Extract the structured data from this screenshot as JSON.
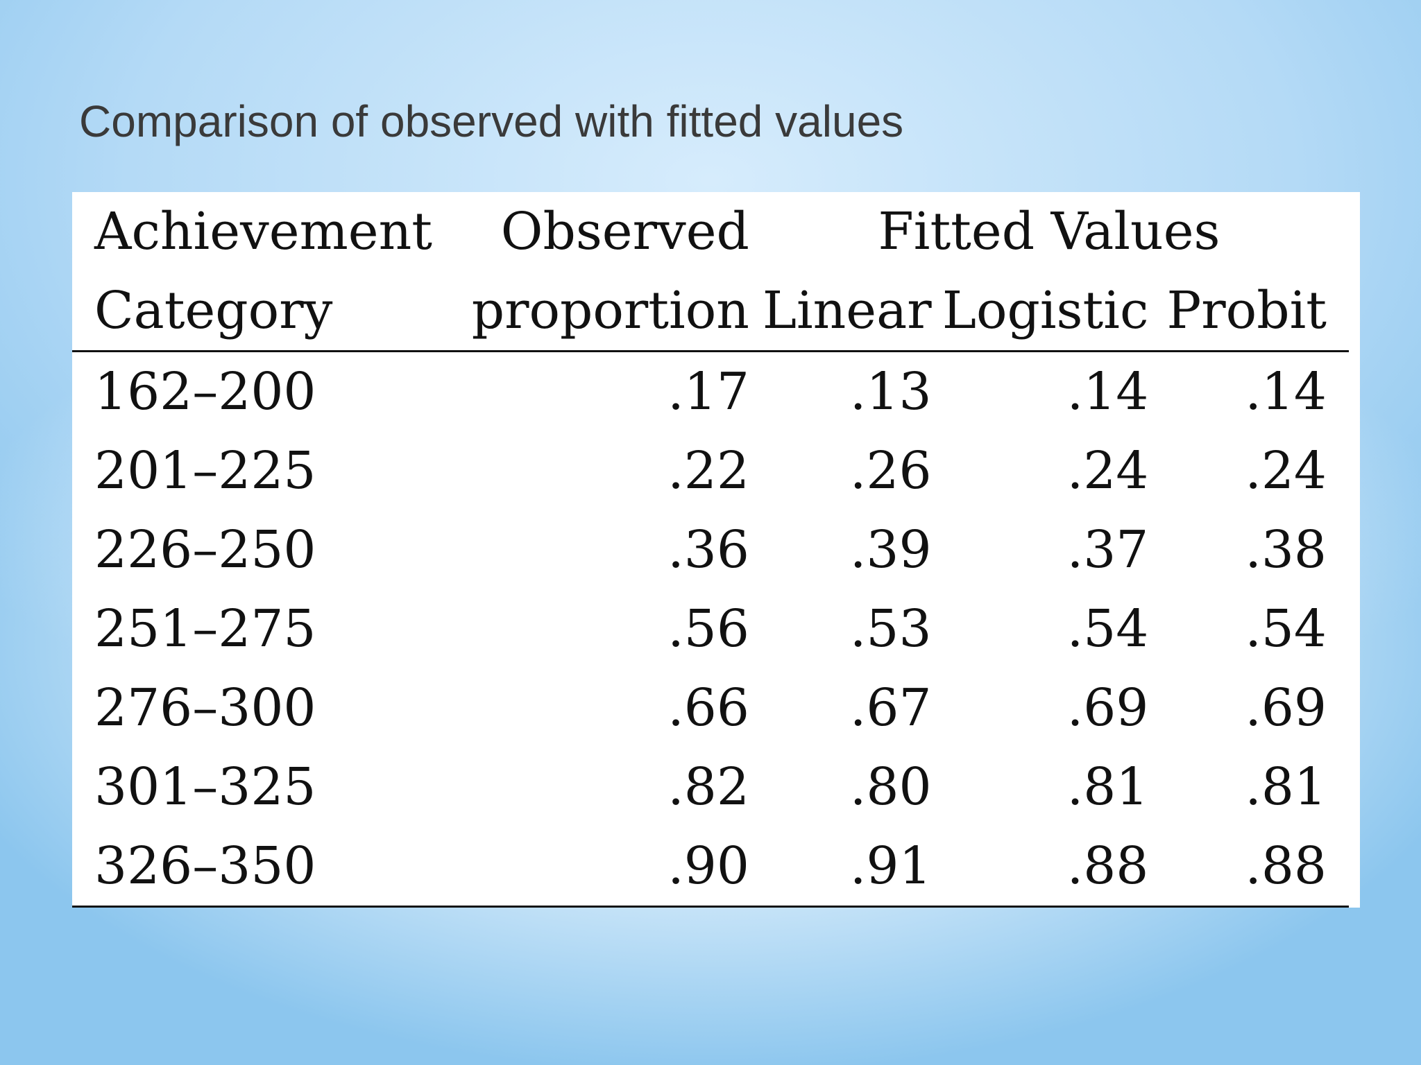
{
  "slide": {
    "title": "Comparison of observed with fitted values"
  },
  "table": {
    "header_row_1": {
      "category": "Achievement",
      "observed": "Observed",
      "fitted": "Fitted Values"
    },
    "header_row_2": {
      "category": "Category",
      "observed": "proportion",
      "linear": "Linear",
      "logistic": "Logistic",
      "probit": "Probit"
    },
    "rows": [
      {
        "category": "162–200",
        "observed": ".17",
        "linear": ".13",
        "logistic": ".14",
        "probit": ".14"
      },
      {
        "category": "201–225",
        "observed": ".22",
        "linear": ".26",
        "logistic": ".24",
        "probit": ".24"
      },
      {
        "category": "226–250",
        "observed": ".36",
        "linear": ".39",
        "logistic": ".37",
        "probit": ".38"
      },
      {
        "category": "251–275",
        "observed": ".56",
        "linear": ".53",
        "logistic": ".54",
        "probit": ".54"
      },
      {
        "category": "276–300",
        "observed": ".66",
        "linear": ".67",
        "logistic": ".69",
        "probit": ".69"
      },
      {
        "category": "301–325",
        "observed": ".82",
        "linear": ".80",
        "logistic": ".81",
        "probit": ".81"
      },
      {
        "category": "326–350",
        "observed": ".90",
        "linear": ".91",
        "logistic": ".88",
        "probit": ".88"
      }
    ]
  }
}
